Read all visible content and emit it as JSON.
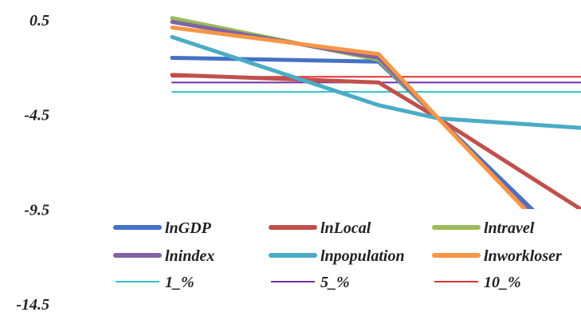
{
  "chart_data": {
    "type": "line",
    "x": [
      1,
      2,
      3,
      4
    ],
    "ylim": [
      -14.5,
      0.5
    ],
    "yticks": [
      "0.5",
      "-4.5",
      "-9.5",
      "-14.5"
    ],
    "grid": false,
    "legend_position": "bottom-center",
    "series": [
      {
        "name": "lnGDP",
        "color": "#4472C4",
        "width": "thick",
        "values": [
          -1.5,
          -1.7,
          -4.7,
          -12.0
        ]
      },
      {
        "name": "lnLocal",
        "color": "#C0504D",
        "width": "thick",
        "values": [
          -2.4,
          -2.8,
          -4.7,
          -9.5
        ]
      },
      {
        "name": "lntravel",
        "color": "#9BBB59",
        "width": "thick",
        "values": [
          0.6,
          -1.6,
          -4.7,
          -12.5
        ]
      },
      {
        "name": "lnindex",
        "color": "#8064A2",
        "width": "thick",
        "values": [
          0.4,
          -1.5,
          -4.7,
          -12.4
        ]
      },
      {
        "name": "lnpopulation",
        "color": "#4BACC6",
        "width": "thick",
        "values": [
          -0.4,
          -4.0,
          -4.7,
          -5.2
        ]
      },
      {
        "name": "lnworkloser",
        "color": "#F79646",
        "width": "thick",
        "values": [
          0.1,
          -1.3,
          -4.7,
          -12.6
        ]
      },
      {
        "name": "1_%",
        "color": "#2CC4CF",
        "width": "thin",
        "values": [
          -3.3,
          -3.3,
          -3.3,
          -3.3
        ]
      },
      {
        "name": "5_%",
        "color": "#7030A0",
        "width": "thin",
        "values": [
          -2.8,
          -2.8,
          -2.8,
          -2.8
        ]
      },
      {
        "name": "10_%",
        "color": "#E03030",
        "width": "thin",
        "values": [
          -2.5,
          -2.5,
          -2.5,
          -2.5
        ]
      }
    ]
  }
}
